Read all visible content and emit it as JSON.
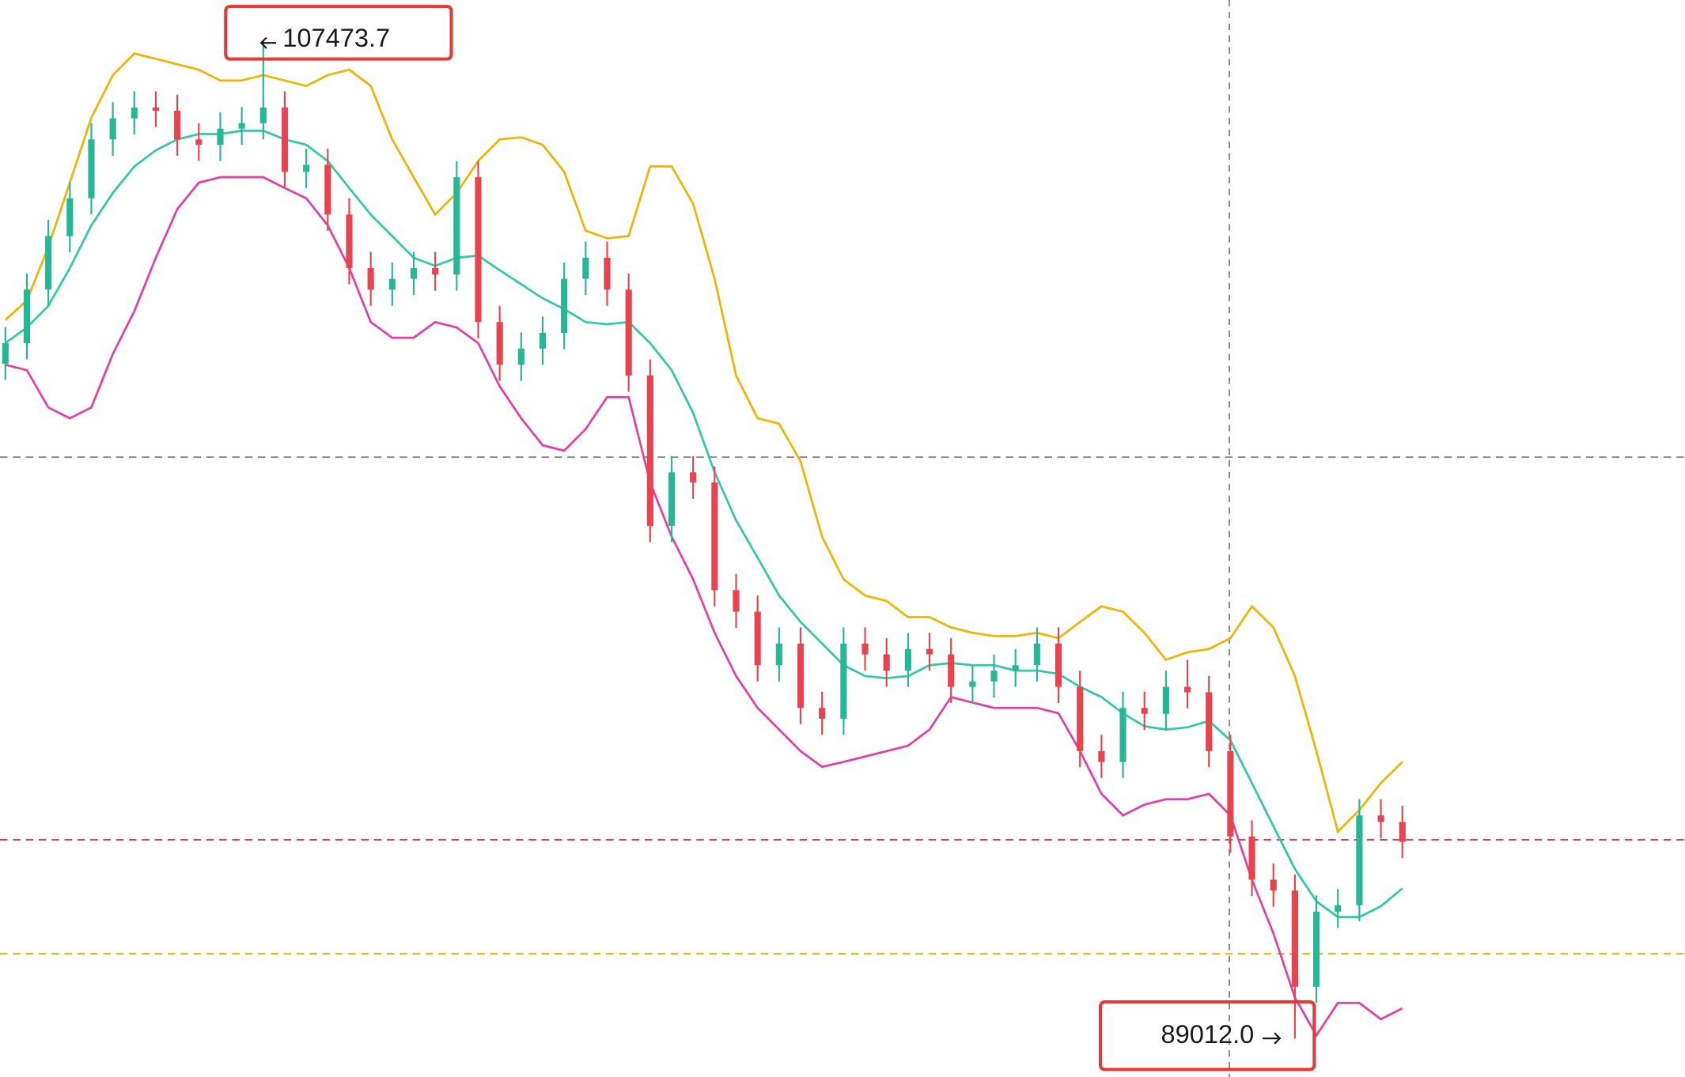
{
  "chart_data": {
    "type": "candlestick",
    "ylim": [
      88300,
      108230
    ],
    "up_color": "#26b894",
    "down_color": "#e8444f",
    "open": [
      101500,
      101880,
      102870,
      103860,
      104560,
      105650,
      106040,
      106240,
      106180,
      105650,
      105550,
      105850,
      105950,
      106240,
      105050,
      105180,
      104260,
      103270,
      102870,
      103070,
      103270,
      103150,
      104950,
      102270,
      101480,
      101780,
      102070,
      103070,
      103460,
      102870,
      101280,
      98500,
      99490,
      99300,
      97310,
      96910,
      95920,
      96320,
      95130,
      94930,
      96320,
      96120,
      95820,
      96220,
      96120,
      95520,
      95620,
      95820,
      95920,
      96320,
      95520,
      94330,
      94130,
      95130,
      95020,
      95520,
      95420,
      94330,
      92750,
      91950,
      91750,
      89970,
      91360,
      91480,
      93140,
      93020
    ],
    "high": [
      102180,
      103170,
      104160,
      104860,
      105950,
      106340,
      106540,
      106540,
      106480,
      105950,
      106150,
      106250,
      107473.7,
      106540,
      105480,
      105480,
      104560,
      103570,
      103370,
      103570,
      103570,
      105250,
      105250,
      102570,
      102080,
      102370,
      103370,
      103760,
      103760,
      103170,
      101580,
      99790,
      99790,
      99600,
      97610,
      97210,
      96620,
      96620,
      95430,
      96620,
      96620,
      96420,
      96520,
      96520,
      96420,
      95920,
      96120,
      96220,
      96620,
      96620,
      95820,
      94630,
      95430,
      95430,
      95820,
      96020,
      95720,
      94630,
      93050,
      92250,
      92050,
      91660,
      91780,
      93440,
      93440,
      93320
    ],
    "low": [
      101200,
      101580,
      102570,
      103560,
      104260,
      105350,
      105740,
      105880,
      105350,
      105250,
      105250,
      105550,
      105650,
      104750,
      104750,
      103960,
      102970,
      102570,
      102570,
      102770,
      102850,
      102850,
      101970,
      101180,
      101180,
      101480,
      101770,
      102770,
      102570,
      100980,
      98200,
      98200,
      99000,
      97010,
      96610,
      95620,
      95620,
      94830,
      94630,
      94630,
      95820,
      95520,
      95520,
      95820,
      95220,
      95220,
      95320,
      95520,
      95620,
      95220,
      94030,
      93830,
      93830,
      94720,
      94720,
      95120,
      94030,
      92450,
      91650,
      91450,
      89012.0,
      89670,
      91060,
      91180,
      92720,
      92350
    ],
    "close": [
      101880,
      102870,
      103860,
      104560,
      105650,
      106040,
      106240,
      106180,
      105650,
      105550,
      105850,
      105950,
      106240,
      105050,
      105180,
      104260,
      103270,
      102870,
      103070,
      103270,
      103150,
      104950,
      102270,
      101480,
      101780,
      102070,
      103070,
      103460,
      102870,
      101280,
      98500,
      99490,
      99300,
      97310,
      96910,
      95920,
      96320,
      95130,
      94930,
      96320,
      96120,
      95820,
      96220,
      96120,
      95520,
      95620,
      95820,
      95920,
      96320,
      95520,
      94330,
      94130,
      95130,
      95020,
      95520,
      95420,
      94330,
      92750,
      91950,
      91750,
      89970,
      91360,
      91480,
      93140,
      93020,
      92650
    ],
    "series": [
      {
        "color": "#f2b200",
        "values": [
          102310,
          102670,
          103660,
          104850,
          106050,
          106840,
          107240,
          107140,
          107040,
          106940,
          106740,
          106740,
          106840,
          106740,
          106640,
          106840,
          106940,
          106640,
          105650,
          104950,
          104260,
          104660,
          105250,
          105650,
          105690,
          105550,
          105050,
          103960,
          103820,
          103860,
          105150,
          105150,
          104460,
          103070,
          101280,
          100490,
          100390,
          99690,
          98300,
          97510,
          97210,
          97110,
          96810,
          96810,
          96620,
          96520,
          96460,
          96460,
          96520,
          96420,
          96720,
          97010,
          96910,
          96520,
          96020,
          96160,
          96220,
          96420,
          97010,
          96620,
          95720,
          94330,
          92840,
          93240,
          93740,
          94130
        ]
      },
      {
        "color": "#2ec9a7",
        "values": [
          101880,
          102170,
          102570,
          103270,
          104060,
          104660,
          105150,
          105450,
          105650,
          105750,
          105750,
          105810,
          105810,
          105650,
          105550,
          105250,
          104750,
          104260,
          103860,
          103460,
          103310,
          103460,
          103500,
          103230,
          102970,
          102710,
          102510,
          102270,
          102230,
          102270,
          101880,
          101380,
          100590,
          99490,
          98600,
          97910,
          97210,
          96720,
          96320,
          95920,
          95720,
          95680,
          95720,
          95920,
          95960,
          95920,
          95920,
          95820,
          95820,
          95760,
          95520,
          95330,
          95030,
          94790,
          94730,
          94770,
          94890,
          94530,
          93740,
          92940,
          92150,
          91550,
          91260,
          91260,
          91460,
          91790
        ]
      },
      {
        "color": "#e33ea4",
        "values": [
          101480,
          101380,
          100690,
          100490,
          100690,
          101680,
          102470,
          103460,
          104360,
          104850,
          104950,
          104950,
          104950,
          104750,
          104560,
          104060,
          103270,
          102270,
          101980,
          101980,
          102270,
          102170,
          101880,
          101080,
          100490,
          99990,
          99890,
          100290,
          100880,
          100880,
          99300,
          98300,
          97510,
          96520,
          95720,
          95130,
          94730,
          94330,
          94040,
          94130,
          94230,
          94330,
          94430,
          94730,
          95330,
          95230,
          95130,
          95130,
          95130,
          95030,
          94330,
          93540,
          93140,
          93340,
          93440,
          93440,
          93540,
          93140,
          91950,
          90960,
          89770,
          89070,
          89670,
          89670,
          89370,
          89570
        ]
      }
    ],
    "levels": [
      {
        "value": 99770,
        "color": "#8a8a8a"
      },
      {
        "value": 92690,
        "color": "#e0404a"
      },
      {
        "value": 90580,
        "color": "#f0b000"
      }
    ],
    "annotations": [
      {
        "value": 107473.7,
        "label": "107473.7"
      },
      {
        "value": 89012.0,
        "label": "89012.0"
      }
    ]
  }
}
